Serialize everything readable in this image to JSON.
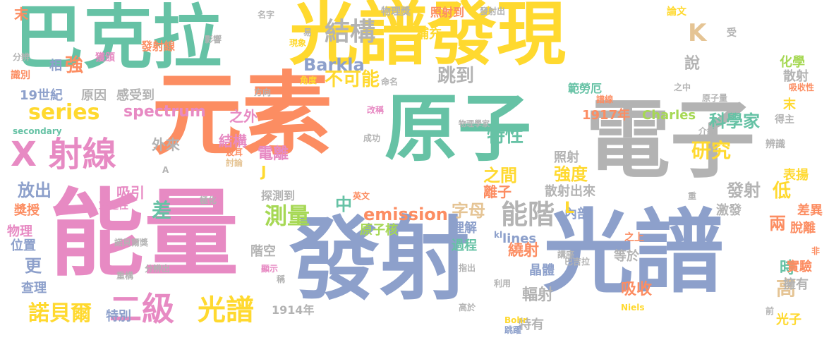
{
  "palette": {
    "green": "#66c2a5",
    "orange": "#fc8d62",
    "blue": "#8da0cb",
    "pink": "#e78ac3",
    "lime": "#a6d854",
    "yellow": "#ffd92f",
    "tan": "#e5c494",
    "gray": "#b3b3b3"
  },
  "words": [
    {
      "text": "巴克拉",
      "color": "#66c2a5"
    },
    {
      "text": "光譜發現",
      "color": "#ffd92f"
    },
    {
      "text": "元素",
      "color": "#fc8d62"
    },
    {
      "text": "原子",
      "color": "#66c2a5"
    },
    {
      "text": "電子",
      "color": "#b3b3b3"
    },
    {
      "text": "能量",
      "color": "#e78ac3"
    },
    {
      "text": "發射",
      "color": "#8da0cb"
    },
    {
      "text": "光譜",
      "color": "#8da0cb"
    },
    {
      "text": "X 射線",
      "color": "#e78ac3"
    },
    {
      "text": "series",
      "color": "#ffd92f"
    },
    {
      "text": "結構",
      "color": "#b3b3b3"
    },
    {
      "text": "能階",
      "color": "#b3b3b3"
    },
    {
      "text": "二級",
      "color": "#e78ac3"
    },
    {
      "text": "光譜",
      "color": "#ffd92f"
    },
    {
      "text": "測量",
      "color": "#a6d854"
    },
    {
      "text": "K",
      "color": "#e5c494"
    },
    {
      "text": "Barkla",
      "color": "#8da0cb"
    },
    {
      "text": "spectrum",
      "color": "#e78ac3"
    },
    {
      "text": "emission",
      "color": "#fc8d62"
    },
    {
      "text": "不可能",
      "color": "#ffd92f"
    },
    {
      "text": "跳到",
      "color": "#b3b3b3"
    },
    {
      "text": "研究",
      "color": "#ffd92f"
    },
    {
      "text": "特性",
      "color": "#66c2a5"
    },
    {
      "text": "科學家",
      "color": "#66c2a5"
    },
    {
      "text": "電離",
      "color": "#e78ac3"
    },
    {
      "text": "強度",
      "color": "#ffd92f"
    },
    {
      "text": "之間",
      "color": "#ffd92f"
    },
    {
      "text": "字母",
      "color": "#e5c494"
    },
    {
      "text": "中",
      "color": "#66c2a5"
    },
    {
      "text": "諾貝爾",
      "color": "#ffd92f"
    },
    {
      "text": "放出",
      "color": "#8da0cb"
    },
    {
      "text": "強",
      "color": "#fc8d62"
    },
    {
      "text": "19世紀",
      "color": "#8da0cb"
    },
    {
      "text": "原因",
      "color": "#b3b3b3"
    },
    {
      "text": "感受到",
      "color": "#b3b3b3"
    },
    {
      "text": "之外",
      "color": "#e78ac3"
    },
    {
      "text": "結構",
      "color": "#e78ac3"
    },
    {
      "text": "外來",
      "color": "#b3b3b3"
    },
    {
      "text": "吸引",
      "color": "#e78ac3"
    },
    {
      "text": "差",
      "color": "#66c2a5"
    },
    {
      "text": "獎授",
      "color": "#fc8d62"
    },
    {
      "text": "物理",
      "color": "#e78ac3"
    },
    {
      "text": "位置",
      "color": "#8da0cb"
    },
    {
      "text": "更",
      "color": "#8da0cb"
    },
    {
      "text": "查理",
      "color": "#8da0cb"
    },
    {
      "text": "階空",
      "color": "#b3b3b3"
    },
    {
      "text": "特別",
      "color": "#8da0cb"
    },
    {
      "text": "1914年",
      "color": "#b3b3b3"
    },
    {
      "text": "原子核",
      "color": "#a6d854"
    },
    {
      "text": "過程",
      "color": "#66c2a5"
    },
    {
      "text": "理解",
      "color": "#8da0cb"
    },
    {
      "text": "繞射",
      "color": "#fc8d62"
    },
    {
      "text": "晶體",
      "color": "#8da0cb"
    },
    {
      "text": "輻射",
      "color": "#b3b3b3"
    },
    {
      "text": "特有",
      "color": "#b3b3b3"
    },
    {
      "text": "吸收",
      "color": "#fc8d62"
    },
    {
      "text": "等於",
      "color": "#b3b3b3"
    },
    {
      "text": "離子",
      "color": "#fc8d62"
    },
    {
      "text": "散射出來",
      "color": "#b3b3b3"
    },
    {
      "text": "內部",
      "color": "#8da0cb"
    },
    {
      "text": "L",
      "color": "#ffd92f"
    },
    {
      "text": "lines",
      "color": "#8da0cb"
    },
    {
      "text": "照射",
      "color": "#b3b3b3"
    },
    {
      "text": "1917年",
      "color": "#fc8d62"
    },
    {
      "text": "Charles",
      "color": "#a6d854"
    },
    {
      "text": "發射",
      "color": "#b3b3b3"
    },
    {
      "text": "低",
      "color": "#ffd92f"
    },
    {
      "text": "兩",
      "color": "#fc8d62"
    },
    {
      "text": "時",
      "color": "#66c2a5"
    },
    {
      "text": "高",
      "color": "#e5c494"
    },
    {
      "text": "光子",
      "color": "#ffd92f"
    },
    {
      "text": "差異",
      "color": "#fc8d62"
    },
    {
      "text": "脫離",
      "color": "#fc8d62"
    },
    {
      "text": "實驗",
      "color": "#fc8d62"
    },
    {
      "text": "擁有",
      "color": "#b3b3b3"
    },
    {
      "text": "表揚",
      "color": "#ffd92f"
    },
    {
      "text": "激發",
      "color": "#b3b3b3"
    },
    {
      "text": "化學",
      "color": "#a6d854"
    },
    {
      "text": "散射",
      "color": "#b3b3b3"
    },
    {
      "text": "說",
      "color": "#b3b3b3"
    },
    {
      "text": "範勞厄",
      "color": "#66c2a5"
    },
    {
      "text": "補充",
      "color": "#ffd92f"
    },
    {
      "text": "照射到",
      "color": "#fc8d62"
    },
    {
      "text": "物理獎",
      "color": "#b3b3b3"
    },
    {
      "text": "發射出",
      "color": "#b3b3b3"
    },
    {
      "text": "論文",
      "color": "#ffd92f"
    },
    {
      "text": "名字",
      "color": "#b3b3b3"
    },
    {
      "text": "末",
      "color": "#fc8d62"
    },
    {
      "text": "分辨",
      "color": "#b3b3b3"
    },
    {
      "text": "影響",
      "color": "#b3b3b3"
    },
    {
      "text": "發射線",
      "color": "#fc8d62"
    },
    {
      "text": "獲頒",
      "color": "#e78ac3"
    },
    {
      "text": "相",
      "color": "#8da0cb"
    },
    {
      "text": "易",
      "color": "#b3b3b3"
    },
    {
      "text": "現象",
      "color": "#ffd92f"
    },
    {
      "text": "命名",
      "color": "#b3b3b3"
    },
    {
      "text": "角度",
      "color": "#ffd92f"
    },
    {
      "text": "方向",
      "color": "#b3b3b3"
    },
    {
      "text": "識別",
      "color": "#fc8d62"
    },
    {
      "text": "secondary",
      "color": "#66c2a5"
    },
    {
      "text": "改稱",
      "color": "#e78ac3"
    },
    {
      "text": "成功",
      "color": "#b3b3b3"
    },
    {
      "text": "物理學家",
      "color": "#b3b3b3"
    },
    {
      "text": "譜線",
      "color": "#fc8d62"
    },
    {
      "text": "之中",
      "color": "#b3b3b3"
    },
    {
      "text": "原子量",
      "color": "#b3b3b3"
    },
    {
      "text": "受",
      "color": "#b3b3b3"
    },
    {
      "text": "吸收性",
      "color": "#fc8d62"
    },
    {
      "text": "末",
      "color": "#ffd92f"
    },
    {
      "text": "得主",
      "color": "#b3b3b3"
    },
    {
      "text": "介紹",
      "color": "#b3b3b3"
    },
    {
      "text": "辨識",
      "color": "#b3b3b3"
    },
    {
      "text": "波耳",
      "color": "#fc8d62"
    },
    {
      "text": "討論",
      "color": "#e5c494"
    },
    {
      "text": "J",
      "color": "#ffd92f"
    },
    {
      "text": "A",
      "color": "#b3b3b3"
    },
    {
      "text": "穿透性",
      "color": "#e78ac3"
    },
    {
      "text": "極化",
      "color": "#b3b3b3"
    },
    {
      "text": "探測到",
      "color": "#b3b3b3"
    },
    {
      "text": "英文",
      "color": "#fc8d62"
    },
    {
      "text": "諾貝爾獎",
      "color": "#b3b3b3"
    },
    {
      "text": "分辨出",
      "color": "#b3b3b3"
    },
    {
      "text": "重構",
      "color": "#b3b3b3"
    },
    {
      "text": "顯示",
      "color": "#e78ac3"
    },
    {
      "text": "稱",
      "color": "#b3b3b3"
    },
    {
      "text": "指出",
      "color": "#b3b3b3"
    },
    {
      "text": "之上",
      "color": "#fc8d62"
    },
    {
      "text": "講座",
      "color": "#b3b3b3"
    },
    {
      "text": "巴吉拉",
      "color": "#b3b3b3"
    },
    {
      "text": "利用",
      "color": "#b3b3b3"
    },
    {
      "text": "高於",
      "color": "#b3b3b3"
    },
    {
      "text": "跳躍",
      "color": "#8da0cb"
    },
    {
      "text": "Bohr",
      "color": "#ffd92f"
    },
    {
      "text": "Niels",
      "color": "#ffd92f"
    },
    {
      "text": "前",
      "color": "#b3b3b3"
    },
    {
      "text": "重",
      "color": "#b3b3b3"
    },
    {
      "text": "非",
      "color": "#fc8d62"
    },
    {
      "text": "kl",
      "color": "#8da0cb"
    }
  ]
}
